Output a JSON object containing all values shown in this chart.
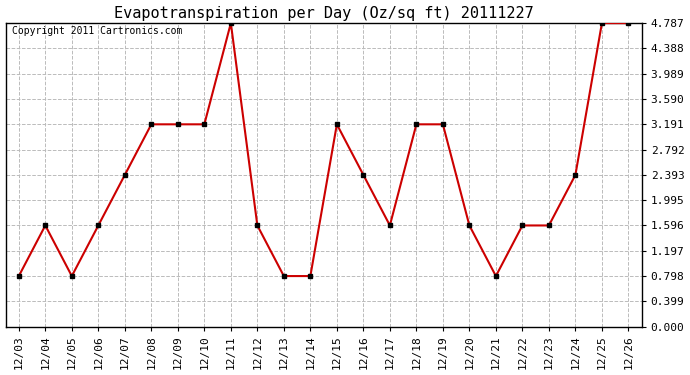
{
  "title": "Evapotranspiration per Day (Oz/sq ft) 20111227",
  "copyright": "Copyright 2011 Cartronics.com",
  "dates": [
    "12/03",
    "12/04",
    "12/05",
    "12/06",
    "12/07",
    "12/08",
    "12/09",
    "12/10",
    "12/11",
    "12/12",
    "12/13",
    "12/14",
    "12/15",
    "12/16",
    "12/17",
    "12/18",
    "12/19",
    "12/20",
    "12/21",
    "12/22",
    "12/23",
    "12/24",
    "12/25",
    "12/26"
  ],
  "values": [
    0.798,
    1.596,
    0.798,
    1.596,
    2.393,
    3.191,
    3.191,
    3.191,
    4.787,
    1.596,
    0.798,
    0.798,
    3.191,
    2.393,
    1.596,
    3.191,
    3.191,
    1.596,
    0.798,
    1.596,
    1.596,
    2.393,
    4.787,
    4.787
  ],
  "line_color": "#cc0000",
  "marker_color": "#000000",
  "bg_color": "#ffffff",
  "grid_color": "#bbbbbb",
  "yticks": [
    0.0,
    0.399,
    0.798,
    1.197,
    1.596,
    1.995,
    2.393,
    2.792,
    3.191,
    3.59,
    3.989,
    4.388,
    4.787
  ],
  "ylim": [
    0.0,
    4.787
  ],
  "title_fontsize": 11,
  "copyright_fontsize": 7,
  "tick_fontsize": 8
}
